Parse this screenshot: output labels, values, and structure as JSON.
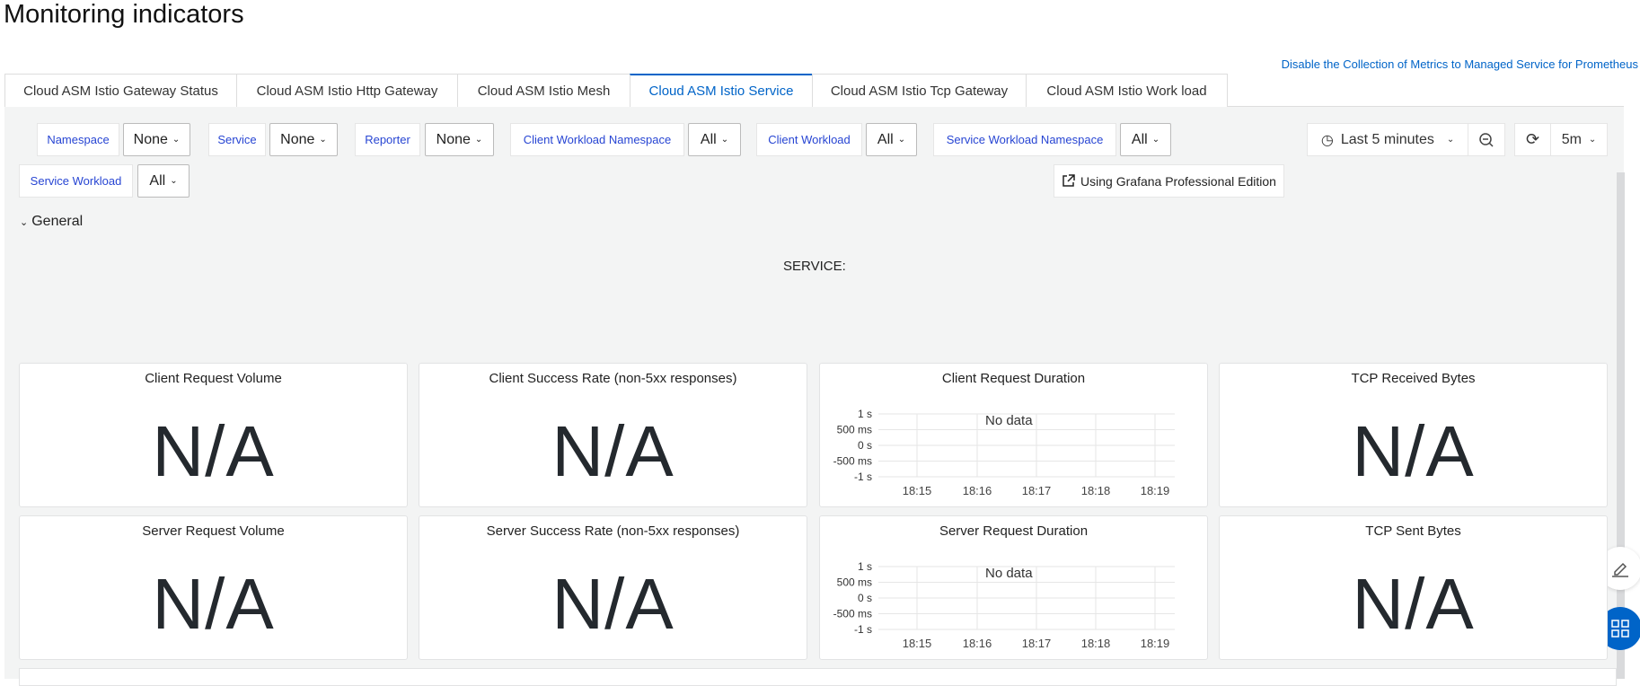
{
  "page_title": "Monitoring indicators",
  "prometheus_link": "Disable the Collection of Metrics to Managed Service for Prometheus",
  "tabs": [
    {
      "label": "Cloud ASM Istio Gateway Status",
      "active": false
    },
    {
      "label": "Cloud ASM Istio Http Gateway",
      "active": false
    },
    {
      "label": "Cloud ASM Istio Mesh",
      "active": false
    },
    {
      "label": "Cloud ASM Istio Service",
      "active": true
    },
    {
      "label": "Cloud ASM Istio Tcp Gateway",
      "active": false
    },
    {
      "label": "Cloud ASM Istio Work load",
      "active": false
    }
  ],
  "filters": [
    {
      "label": "Namespace",
      "value": "None"
    },
    {
      "label": "Service",
      "value": "None"
    },
    {
      "label": "Reporter",
      "value": "None"
    },
    {
      "label": "Client Workload Namespace",
      "value": "All"
    },
    {
      "label": "Client Workload",
      "value": "All"
    },
    {
      "label": "Service Workload Namespace",
      "value": "All"
    },
    {
      "label": "Service Workload",
      "value": "All"
    }
  ],
  "time_picker": {
    "label": "Last 5 minutes",
    "refresh": "5m"
  },
  "grafana_button": "Using Grafana Professional Edition",
  "row_general": "General",
  "service_text": "SERVICE:",
  "panels": [
    {
      "title": "Client Request Volume",
      "type": "stat",
      "value": "N/A"
    },
    {
      "title": "Client Success Rate (non-5xx responses)",
      "type": "stat",
      "value": "N/A"
    },
    {
      "title": "Client Request Duration",
      "type": "graph",
      "no_data": "No data"
    },
    {
      "title": "TCP Received Bytes",
      "type": "stat",
      "value": "N/A"
    },
    {
      "title": "Server Request Volume",
      "type": "stat",
      "value": "N/A"
    },
    {
      "title": "Server Success Rate (non-5xx responses)",
      "type": "stat",
      "value": "N/A"
    },
    {
      "title": "Server Request Duration",
      "type": "graph",
      "no_data": "No data"
    },
    {
      "title": "TCP Sent Bytes",
      "type": "stat",
      "value": "N/A"
    }
  ],
  "graph_axis": {
    "y_ticks": [
      "1 s",
      "500 ms",
      "0 s",
      "-500 ms",
      "-1 s"
    ],
    "x_ticks": [
      "18:15",
      "18:16",
      "18:17",
      "18:18",
      "18:19"
    ]
  },
  "colors": {
    "accent": "#0064c8",
    "filter_label": "#2745d3",
    "background": "#f3f4f4"
  }
}
